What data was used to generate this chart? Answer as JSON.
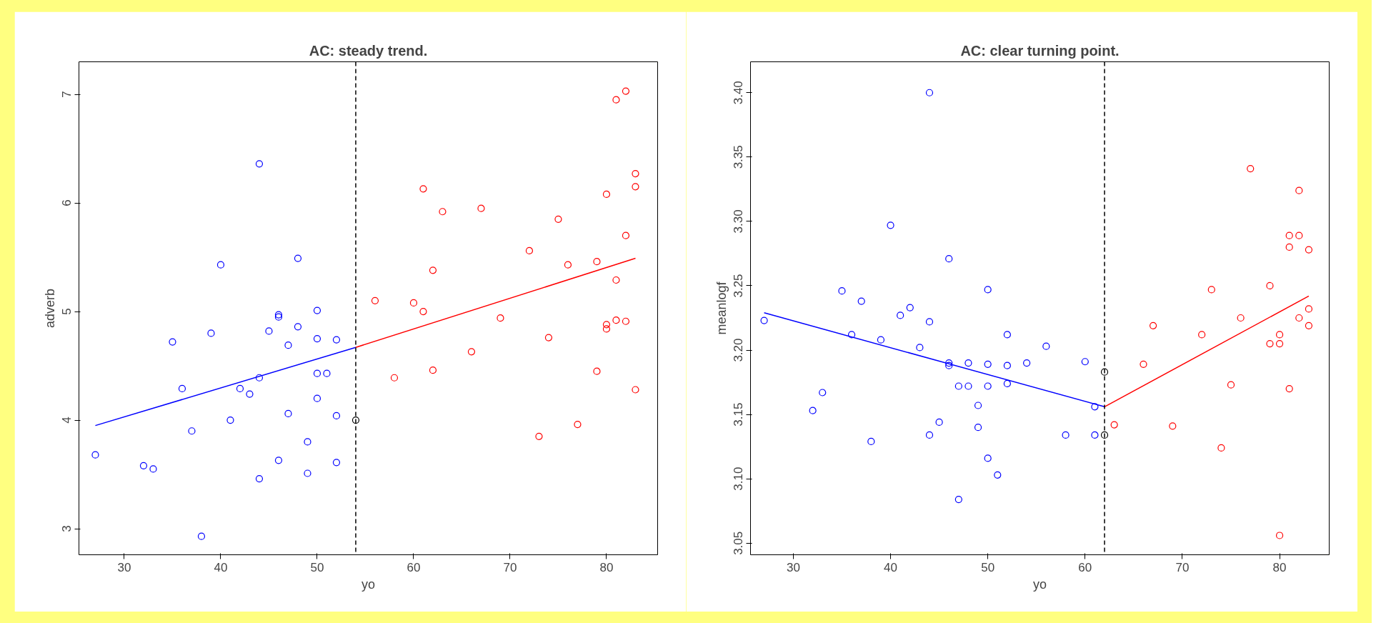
{
  "chart_data": [
    {
      "type": "scatter",
      "title": "AC: steady trend.",
      "xlabel": "yo",
      "ylabel": "adverb",
      "xlim": [
        25.3,
        85.3
      ],
      "ylim": [
        2.76,
        7.3
      ],
      "xticks": [
        30,
        40,
        50,
        60,
        70,
        80
      ],
      "yticks": [
        3,
        4,
        5,
        6,
        7
      ],
      "grid": false,
      "marker": "circle",
      "ref_lines": [
        {
          "axis": "x",
          "value": 54,
          "color": "#000000",
          "line_style": "dashed"
        }
      ],
      "series": [
        {
          "color": "#0000ff",
          "x": [
            27,
            32,
            33,
            35,
            36,
            37,
            38,
            39,
            40,
            41,
            42,
            43,
            44,
            44,
            44,
            45,
            46,
            46,
            46,
            47,
            47,
            48,
            48,
            49,
            49,
            50,
            50,
            50,
            50,
            51,
            52,
            52,
            52
          ],
          "values": [
            3.68,
            3.58,
            3.55,
            4.72,
            4.29,
            3.9,
            2.93,
            4.8,
            5.43,
            4.0,
            4.29,
            4.24,
            6.36,
            4.39,
            3.46,
            4.82,
            4.97,
            4.95,
            3.63,
            4.69,
            4.06,
            5.49,
            4.86,
            3.8,
            3.51,
            5.01,
            4.75,
            4.43,
            4.2,
            4.43,
            4.74,
            4.04,
            3.61
          ]
        },
        {
          "color": "#000000",
          "x": [
            54
          ],
          "values": [
            4.0
          ]
        },
        {
          "color": "#ff0000",
          "x": [
            56,
            58,
            60,
            61,
            61,
            62,
            62,
            63,
            67,
            66,
            69,
            72,
            73,
            74,
            75,
            76,
            77,
            79,
            79,
            80,
            80,
            80,
            81,
            81,
            81,
            82,
            82,
            82,
            83,
            83,
            83
          ],
          "values": [
            5.1,
            4.39,
            5.08,
            5.0,
            6.13,
            5.38,
            4.46,
            5.92,
            5.95,
            4.63,
            4.94,
            5.56,
            3.85,
            4.76,
            5.85,
            5.43,
            3.96,
            5.46,
            4.45,
            6.08,
            4.88,
            4.84,
            6.95,
            5.29,
            4.92,
            7.03,
            5.7,
            4.91,
            6.27,
            6.15,
            4.28
          ]
        },
        {
          "type": "line",
          "marker": "none",
          "color": "#0000ff",
          "x": [
            27,
            54
          ],
          "values": [
            3.95,
            4.67
          ]
        },
        {
          "type": "line",
          "marker": "none",
          "color": "#ff0000",
          "x": [
            54,
            83
          ],
          "values": [
            4.67,
            5.49
          ]
        }
      ]
    },
    {
      "type": "scatter",
      "title": "AC: clear turning point.",
      "xlabel": "yo",
      "ylabel": "meanlogf",
      "xlim": [
        25.6,
        85.1
      ],
      "ylim": [
        3.041,
        3.424
      ],
      "xticks": [
        30,
        40,
        50,
        60,
        70,
        80
      ],
      "yticks": [
        3.05,
        {
          "value": 3.1,
          "label": "3.10"
        },
        3.15,
        {
          "value": 3.2,
          "label": "3.20"
        },
        3.25,
        {
          "value": 3.3,
          "label": "3.30"
        },
        3.35,
        {
          "value": 3.4,
          "label": "3.40"
        }
      ],
      "grid": false,
      "marker": "circle",
      "ref_lines": [
        {
          "axis": "x",
          "value": 62,
          "color": "#000000",
          "line_style": "dashed"
        }
      ],
      "series": [
        {
          "color": "#0000ff",
          "x": [
            27,
            32,
            33,
            35,
            36,
            37,
            38,
            39,
            40,
            41,
            42,
            43,
            44,
            44,
            44,
            45,
            46,
            46,
            46,
            47,
            47,
            48,
            48,
            49,
            49,
            50,
            50,
            50,
            50,
            51,
            52,
            52,
            52,
            54,
            56,
            58,
            60,
            61,
            61
          ],
          "values": [
            3.223,
            3.153,
            3.167,
            3.246,
            3.212,
            3.238,
            3.129,
            3.208,
            3.297,
            3.227,
            3.233,
            3.202,
            3.4,
            3.222,
            3.134,
            3.144,
            3.271,
            3.19,
            3.188,
            3.172,
            3.084,
            3.19,
            3.172,
            3.157,
            3.14,
            3.247,
            3.189,
            3.172,
            3.116,
            3.103,
            3.212,
            3.188,
            3.174,
            3.19,
            3.203,
            3.134,
            3.191,
            3.156,
            3.134
          ]
        },
        {
          "color": "#000000",
          "x": [
            62,
            62
          ],
          "values": [
            3.183,
            3.134
          ]
        },
        {
          "color": "#ff0000",
          "x": [
            63,
            66,
            67,
            69,
            72,
            73,
            74,
            75,
            76,
            77,
            79,
            79,
            80,
            80,
            80,
            81,
            81,
            81,
            82,
            82,
            82,
            83,
            83,
            83
          ],
          "values": [
            3.142,
            3.189,
            3.219,
            3.141,
            3.212,
            3.247,
            3.124,
            3.173,
            3.225,
            3.341,
            3.205,
            3.25,
            3.205,
            3.212,
            3.056,
            3.28,
            3.289,
            3.17,
            3.324,
            3.289,
            3.225,
            3.278,
            3.232,
            3.219
          ]
        },
        {
          "type": "line",
          "marker": "none",
          "color": "#0000ff",
          "x": [
            27,
            62
          ],
          "values": [
            3.229,
            3.156
          ]
        },
        {
          "type": "line",
          "marker": "none",
          "color": "#ff0000",
          "x": [
            62,
            83
          ],
          "values": [
            3.156,
            3.242
          ]
        }
      ]
    }
  ]
}
